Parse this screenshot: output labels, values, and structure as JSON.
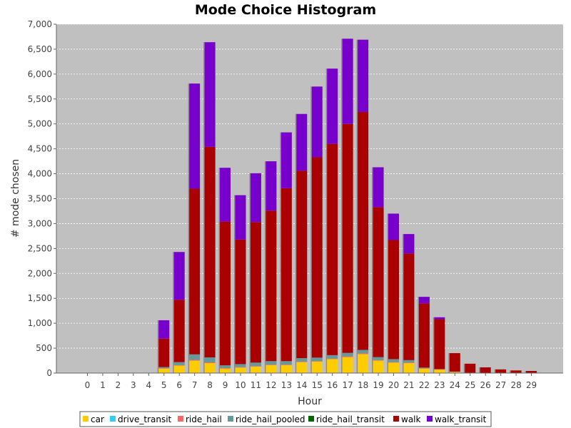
{
  "chart_data": {
    "type": "bar",
    "stacked": true,
    "title": "Mode Choice Histogram",
    "xlabel": "Hour",
    "ylabel": "# mode chosen",
    "ylim": [
      0,
      7000
    ],
    "yticks": [
      "0",
      "500",
      "1,000",
      "1,500",
      "2,000",
      "2,500",
      "3,000",
      "3,500",
      "4,000",
      "4,500",
      "5,000",
      "5,500",
      "6,000",
      "6,500",
      "7,000"
    ],
    "ytick_values": [
      0,
      500,
      1000,
      1500,
      2000,
      2500,
      3000,
      3500,
      4000,
      4500,
      5000,
      5500,
      6000,
      6500,
      7000
    ],
    "categories": [
      "0",
      "1",
      "2",
      "3",
      "4",
      "5",
      "6",
      "7",
      "8",
      "9",
      "10",
      "11",
      "12",
      "13",
      "14",
      "15",
      "16",
      "17",
      "18",
      "19",
      "20",
      "21",
      "22",
      "23",
      "24",
      "25",
      "26",
      "27",
      "28",
      "29"
    ],
    "grid": true,
    "legend_position": "bottom",
    "background": "#c0c0c0",
    "series": [
      {
        "name": "car",
        "color": "#ffcc00",
        "values": [
          0,
          0,
          0,
          0,
          0,
          90,
          150,
          250,
          200,
          90,
          110,
          130,
          160,
          160,
          220,
          230,
          280,
          320,
          380,
          250,
          210,
          200,
          90,
          70,
          25,
          8,
          5,
          4,
          3,
          3
        ]
      },
      {
        "name": "drive_transit",
        "color": "#33ccff",
        "values": [
          0,
          0,
          0,
          0,
          0,
          0,
          0,
          0,
          0,
          0,
          0,
          0,
          0,
          0,
          0,
          0,
          0,
          0,
          0,
          0,
          0,
          0,
          0,
          0,
          0,
          0,
          0,
          0,
          0,
          0
        ]
      },
      {
        "name": "ride_hail",
        "color": "#ff6666",
        "values": [
          0,
          0,
          0,
          0,
          0,
          5,
          10,
          15,
          15,
          10,
          10,
          10,
          10,
          10,
          10,
          10,
          10,
          15,
          15,
          10,
          10,
          10,
          5,
          5,
          2,
          0,
          0,
          0,
          0,
          0
        ]
      },
      {
        "name": "ride_hail_pooled",
        "color": "#669999",
        "values": [
          0,
          0,
          0,
          0,
          0,
          25,
          60,
          110,
          100,
          55,
          60,
          70,
          70,
          70,
          70,
          70,
          70,
          70,
          70,
          60,
          60,
          50,
          15,
          5,
          3,
          0,
          0,
          0,
          0,
          0
        ]
      },
      {
        "name": "ride_hail_transit",
        "color": "#006600",
        "values": [
          0,
          0,
          0,
          0,
          0,
          0,
          0,
          0,
          0,
          0,
          0,
          0,
          0,
          0,
          0,
          0,
          0,
          0,
          0,
          0,
          0,
          0,
          0,
          0,
          0,
          0,
          0,
          0,
          0,
          0
        ]
      },
      {
        "name": "walk",
        "color": "#aa0000",
        "values": [
          0,
          0,
          0,
          0,
          0,
          570,
          1250,
          3325,
          4225,
          2885,
          2500,
          2820,
          3020,
          3470,
          3760,
          4020,
          4240,
          4595,
          4775,
          3010,
          2390,
          2140,
          1290,
          1000,
          370,
          180,
          110,
          70,
          50,
          40
        ]
      },
      {
        "name": "walk_transit",
        "color": "#7700cc",
        "values": [
          0,
          0,
          0,
          0,
          0,
          370,
          960,
          2110,
          2100,
          1080,
          890,
          980,
          990,
          1120,
          1140,
          1420,
          1510,
          1710,
          1450,
          800,
          530,
          390,
          130,
          40,
          0,
          0,
          0,
          0,
          0,
          0
        ]
      }
    ]
  }
}
